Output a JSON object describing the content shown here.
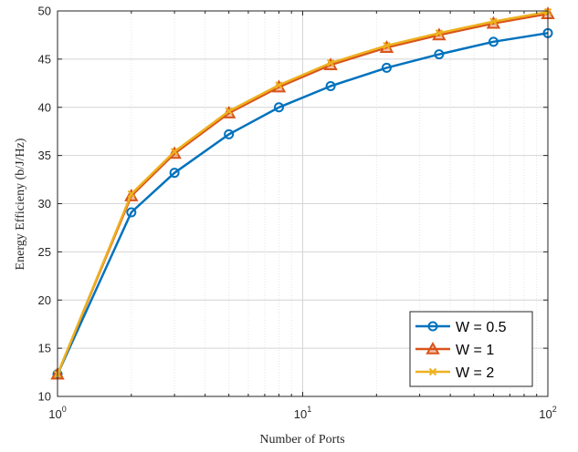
{
  "chart_data": {
    "type": "line",
    "xscale": "log",
    "xlabel": "Number of Ports",
    "ylabel": "Energy Efficieny (b/J/Hz)",
    "xlim": [
      1,
      100
    ],
    "ylim": [
      10,
      50
    ],
    "xticks": [
      {
        "value": 1,
        "base": "10",
        "exp": "0"
      },
      {
        "value": 10,
        "base": "10",
        "exp": "1"
      },
      {
        "value": 100,
        "base": "10",
        "exp": "2"
      }
    ],
    "yticks": [
      10,
      15,
      20,
      25,
      30,
      35,
      40,
      45,
      50
    ],
    "grid": true,
    "legend_position": "bottom-right",
    "x": [
      1,
      2,
      3,
      5,
      8,
      13,
      22,
      36,
      60,
      100
    ],
    "series": [
      {
        "name": "W = 0.5",
        "color": "#0072BD",
        "marker": "circle",
        "values": [
          12.3,
          29.1,
          33.2,
          37.2,
          40.0,
          42.2,
          44.1,
          45.5,
          46.8,
          47.7
        ]
      },
      {
        "name": "W = 1",
        "color": "#D95319",
        "marker": "triangle",
        "values": [
          12.3,
          30.8,
          35.2,
          39.4,
          42.1,
          44.4,
          46.2,
          47.5,
          48.7,
          49.7
        ]
      },
      {
        "name": "W = 2",
        "color": "#EDB120",
        "marker": "x",
        "values": [
          12.3,
          31.0,
          35.4,
          39.6,
          42.3,
          44.6,
          46.4,
          47.7,
          48.9,
          49.9
        ]
      }
    ]
  }
}
